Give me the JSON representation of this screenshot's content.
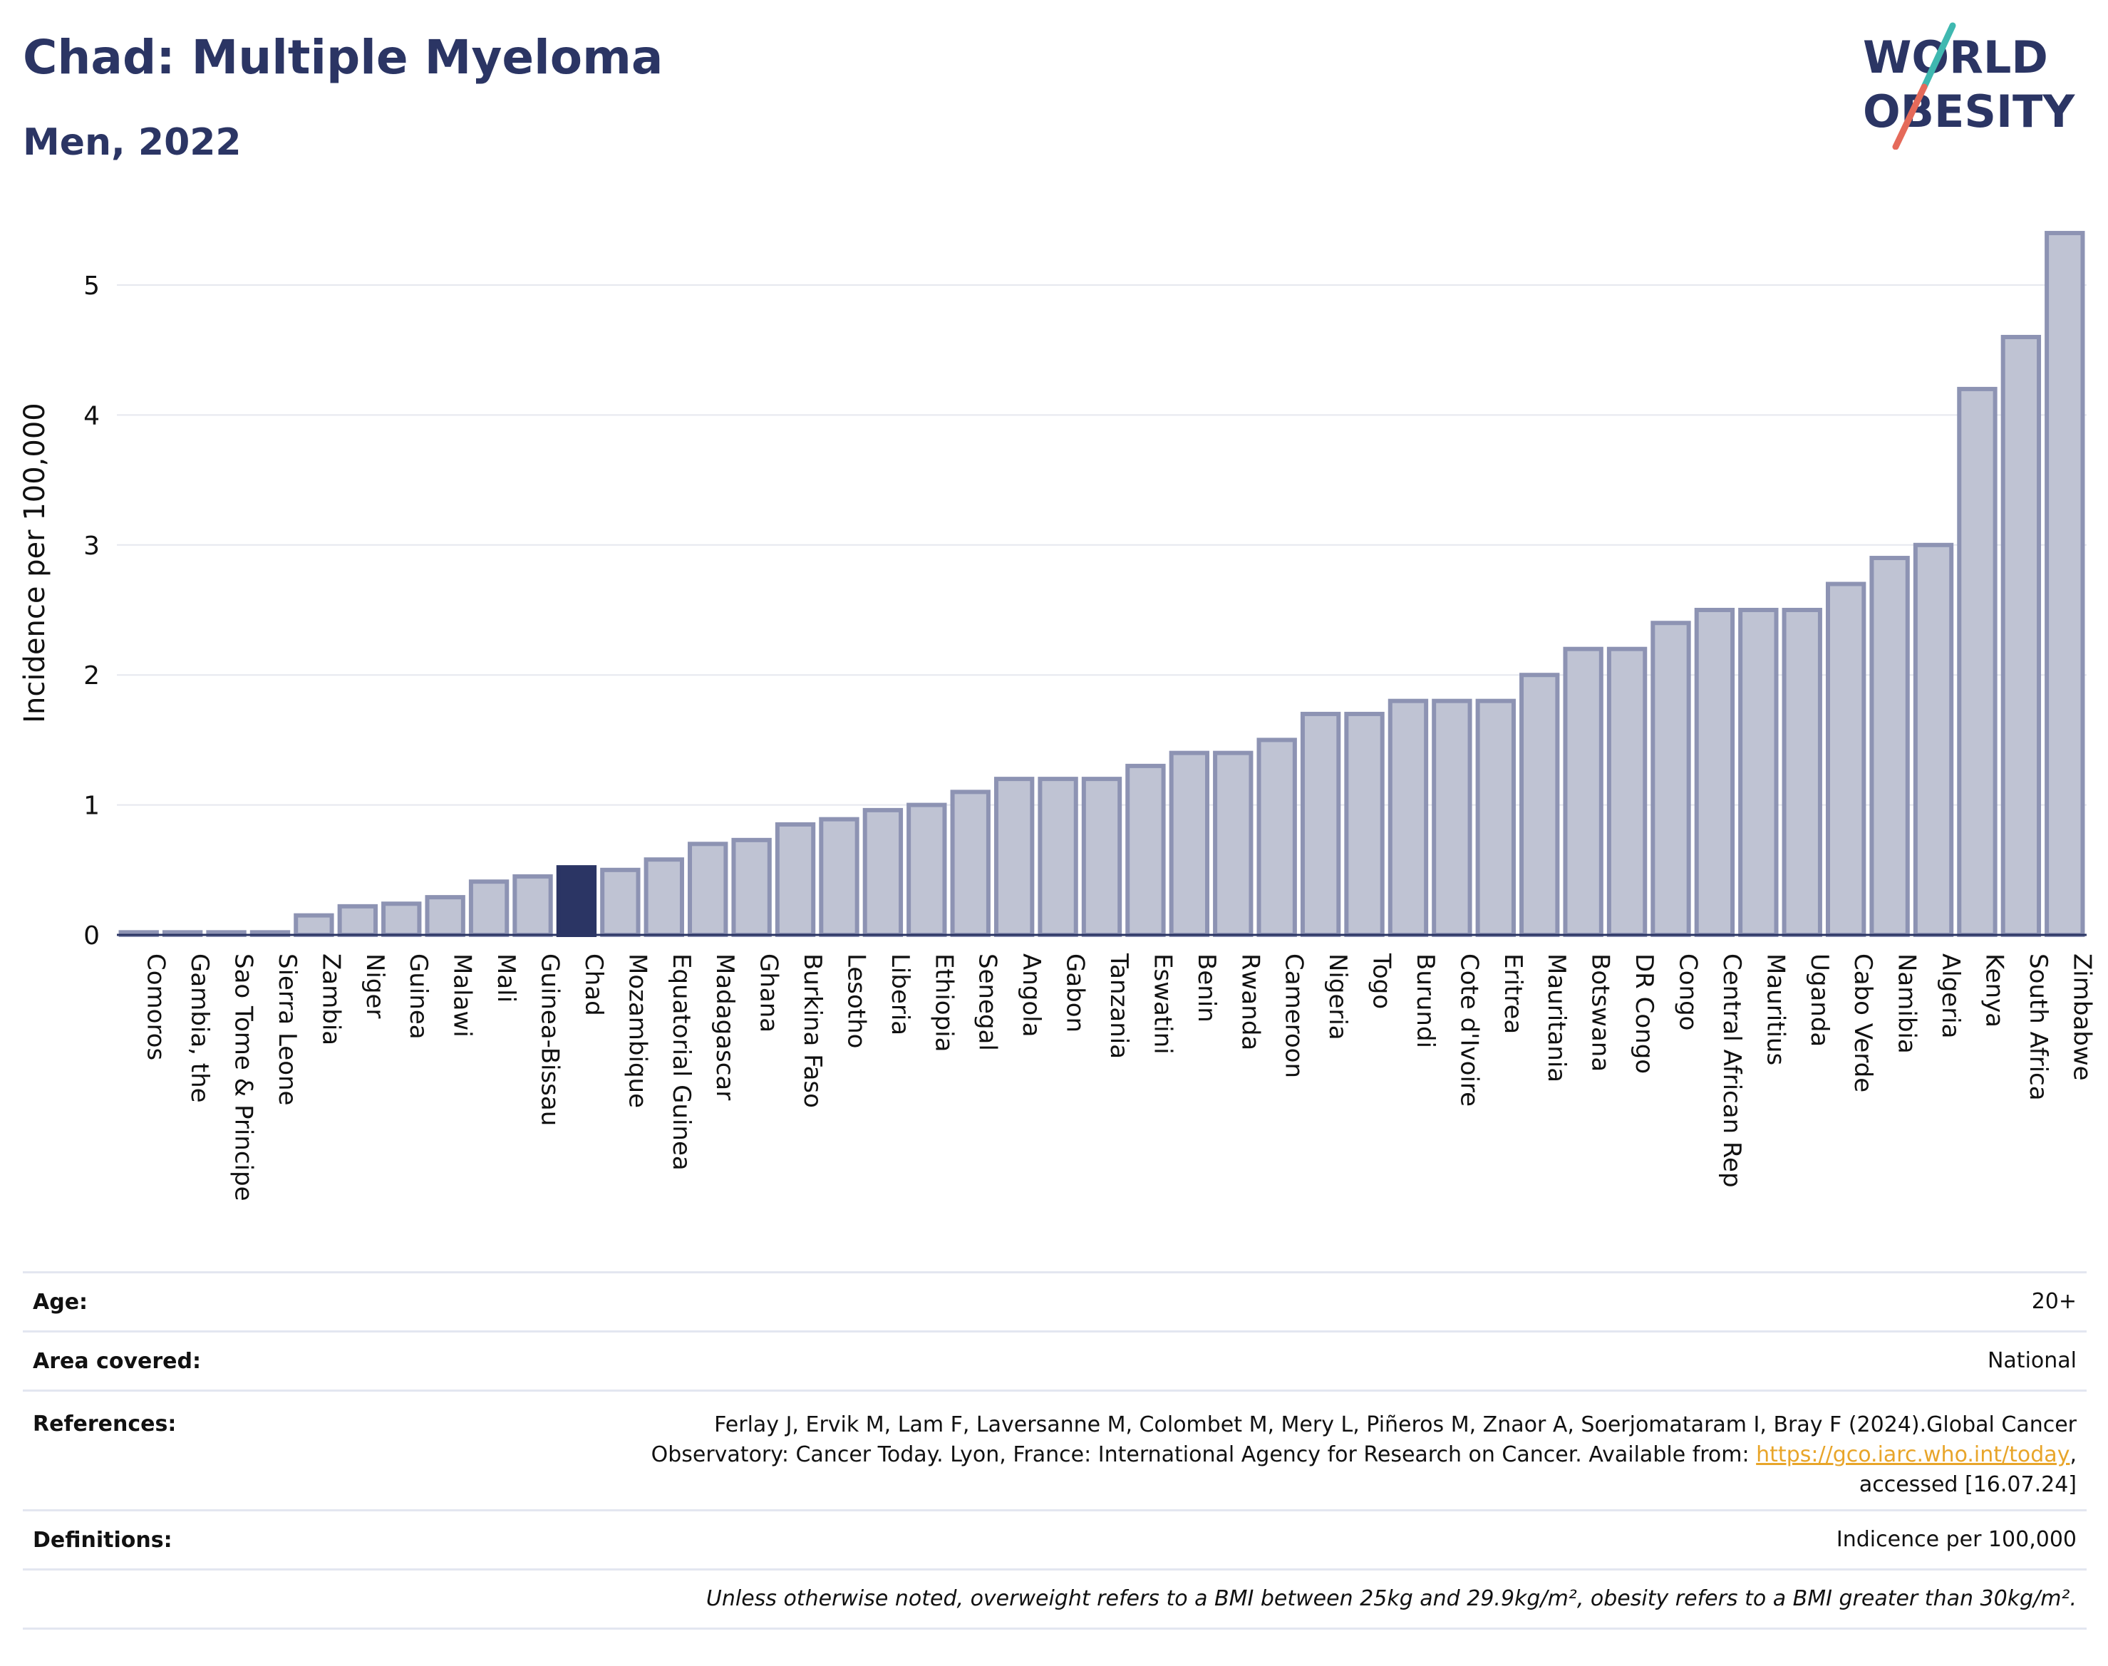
{
  "header": {
    "title": "Chad: Multiple Myeloma",
    "subtitle": "Men, 2022",
    "logo_line1": "WORLD",
    "logo_line2": "OBESITY"
  },
  "colors": {
    "title": "#2b3564",
    "bar_fill": "#bfc3d3",
    "bar_stroke": "#8d93b3",
    "highlight": "#2b3564",
    "link": "#e8a52a",
    "logo_teal": "#3fb8b0",
    "logo_coral": "#e56a5a"
  },
  "chart_data": {
    "type": "bar",
    "ylabel": "Incidence per 100,000",
    "xlabel": "",
    "ylim": [
      0,
      5.5
    ],
    "yticks": [
      0,
      1,
      2,
      3,
      4,
      5
    ],
    "grid": true,
    "highlight": "Chad",
    "categories": [
      "Comoros",
      "Gambia, the",
      "Sao Tome & Principe",
      "Sierra Leone",
      "Zambia",
      "Niger",
      "Guinea",
      "Malawi",
      "Mali",
      "Guinea-Bissau",
      "Chad",
      "Mozambique",
      "Equatorial Guinea",
      "Madagascar",
      "Ghana",
      "Burkina Faso",
      "Lesotho",
      "Liberia",
      "Ethiopia",
      "Senegal",
      "Angola",
      "Gabon",
      "Tanzania",
      "Eswatini",
      "Benin",
      "Rwanda",
      "Cameroon",
      "Nigeria",
      "Togo",
      "Burundi",
      "Cote d'Ivoire",
      "Eritrea",
      "Mauritania",
      "Botswana",
      "DR Congo",
      "Congo",
      "Central African Rep",
      "Mauritius",
      "Uganda",
      "Cabo Verde",
      "Namibia",
      "Algeria",
      "Kenya",
      "South Africa",
      "Zimbabwe"
    ],
    "values": [
      0.02,
      0.02,
      0.02,
      0.02,
      0.15,
      0.22,
      0.24,
      0.29,
      0.41,
      0.45,
      0.52,
      0.5,
      0.58,
      0.7,
      0.73,
      0.85,
      0.89,
      0.96,
      1.0,
      1.1,
      1.2,
      1.2,
      1.2,
      1.3,
      1.4,
      1.4,
      1.5,
      1.7,
      1.7,
      1.8,
      1.8,
      1.8,
      2.0,
      2.2,
      2.2,
      2.4,
      2.5,
      2.5,
      2.5,
      2.7,
      2.9,
      3.0,
      4.2,
      4.6,
      5.4
    ]
  },
  "info": {
    "age_label": "Age:",
    "age_value": "20+",
    "area_label": "Area covered:",
    "area_value": "National",
    "references_label": "References:",
    "references_line1": "Ferlay J, Ervik M, Lam F, Laversanne M, Colombet M, Mery L, Piñeros M, Znaor A, Soerjomataram I, Bray F (2024).Global Cancer",
    "references_line2_pre": "Observatory: Cancer Today. Lyon, France: International Agency for Research on Cancer. Available from: ",
    "references_link": "https://gco.iarc.who.int/today",
    "references_line2_post": ",",
    "references_line3": "accessed [16.07.24]",
    "definitions_label": "Definitions:",
    "definitions_value": "Indicence per 100,000",
    "note": "Unless otherwise noted, overweight refers to a BMI between 25kg and 29.9kg/m², obesity refers to a BMI greater than 30kg/m²."
  }
}
